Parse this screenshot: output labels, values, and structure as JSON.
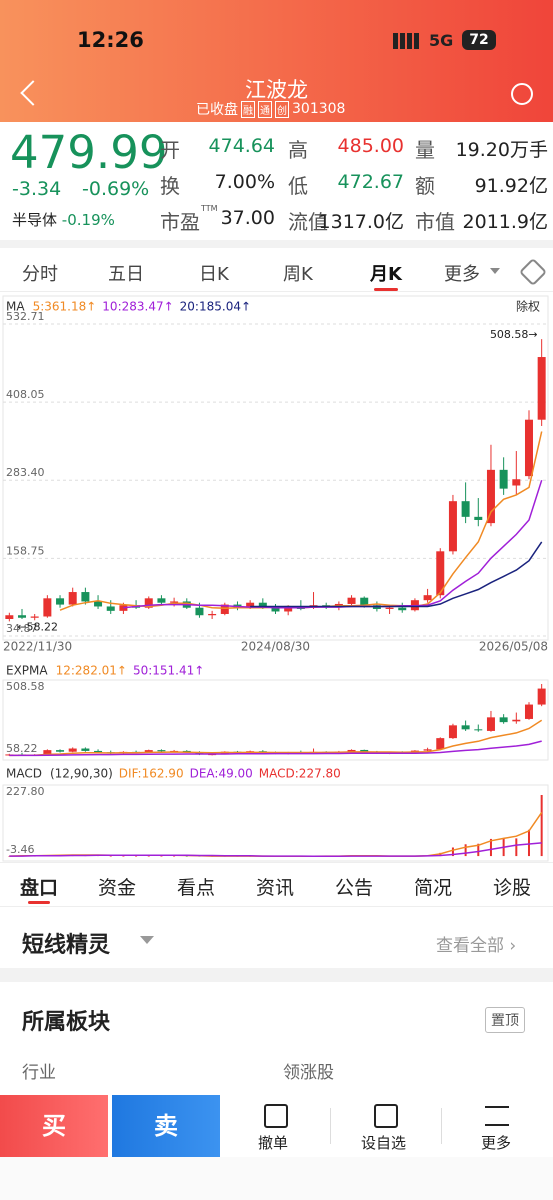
{
  "status_bar": {
    "time": "12:26",
    "network": "5G",
    "battery": "72"
  },
  "header": {
    "title": "江波龙",
    "status": "已收盘",
    "badges": [
      "融",
      "通",
      "创"
    ],
    "code": "301308"
  },
  "quote": {
    "price": "479.99",
    "change": "-3.34",
    "change_pct": "-0.69%",
    "stats": [
      {
        "label": "开",
        "value": "474.64"
      },
      {
        "label": "高",
        "value": "485.00"
      },
      {
        "label": "量",
        "value": "19.20万手"
      },
      {
        "label": "换",
        "value": "7.00%"
      },
      {
        "label": "低",
        "value": "472.67"
      },
      {
        "label": "额",
        "value": "91.92亿"
      },
      {
        "label": "市盈",
        "sup": "TTM",
        "value": "37.00"
      },
      {
        "label": "流值",
        "value": "1317.0亿"
      },
      {
        "label": "市值",
        "value": "2011.9亿"
      }
    ],
    "sector": "半导体",
    "sector_change": "-0.19%"
  },
  "period_tabs": [
    "分时",
    "五日",
    "日K",
    "周K",
    "月K",
    "更多"
  ],
  "chart_data": [
    {
      "type": "candlestick",
      "indicator": "MA",
      "adjust": "除权",
      "max_label": "508.58→",
      "min_label": "←58.22",
      "up_color": "#e8312f",
      "down_color": "#17925b",
      "ylim": [
        34.87,
        532.71
      ],
      "yticks": [
        532.71,
        408.05,
        {
          "value": 283.4,
          "label": "283.40"
        },
        158.75,
        34.87
      ],
      "grid": true,
      "categories": [
        "2022/11/30",
        null,
        null,
        null,
        null,
        null,
        null,
        null,
        null,
        null,
        null,
        null,
        null,
        null,
        null,
        null,
        null,
        null,
        null,
        null,
        null,
        "2024/08/30",
        null,
        null,
        null,
        null,
        null,
        null,
        null,
        null,
        null,
        null,
        null,
        null,
        null,
        null,
        null,
        null,
        null,
        null,
        null,
        null,
        "2026/05/08"
      ],
      "candles": [
        [
          62,
          72,
          58.22,
          68
        ],
        [
          68,
          78,
          62,
          64
        ],
        [
          64,
          70,
          60,
          66
        ],
        [
          66,
          100,
          64,
          95
        ],
        [
          95,
          100,
          80,
          85
        ],
        [
          85,
          112,
          82,
          105
        ],
        [
          105,
          112,
          85,
          90
        ],
        [
          90,
          100,
          78,
          82
        ],
        [
          82,
          92,
          70,
          75
        ],
        [
          75,
          88,
          70,
          84
        ],
        [
          84,
          92,
          78,
          80
        ],
        [
          80,
          98,
          78,
          95
        ],
        [
          95,
          100,
          85,
          88
        ],
        [
          88,
          96,
          82,
          90
        ],
        [
          90,
          95,
          78,
          80
        ],
        [
          80,
          88,
          64,
          68
        ],
        [
          68,
          75,
          62,
          70
        ],
        [
          70,
          88,
          68,
          85
        ],
        [
          85,
          90,
          76,
          80
        ],
        [
          80,
          92,
          78,
          88
        ],
        [
          88,
          95,
          78,
          82
        ],
        [
          82,
          86,
          70,
          74
        ],
        [
          74,
          84,
          68,
          80
        ],
        [
          80,
          92,
          76,
          78
        ],
        [
          80,
          105,
          78,
          84
        ],
        [
          84,
          88,
          78,
          82
        ],
        [
          82,
          90,
          76,
          86
        ],
        [
          86,
          100,
          84,
          96
        ],
        [
          96,
          98,
          80,
          84
        ],
        [
          84,
          90,
          74,
          78
        ],
        [
          78,
          85,
          70,
          80
        ],
        [
          80,
          88,
          72,
          76
        ],
        [
          76,
          95,
          74,
          92
        ],
        [
          92,
          110,
          88,
          100
        ],
        [
          100,
          175,
          95,
          170
        ],
        [
          170,
          260,
          165,
          250
        ],
        [
          250,
          280,
          215,
          225
        ],
        [
          225,
          255,
          210,
          220
        ],
        [
          215,
          340,
          210,
          300
        ],
        [
          300,
          320,
          260,
          270
        ],
        [
          275,
          330,
          260,
          285
        ],
        [
          290,
          395,
          285,
          380
        ],
        [
          380,
          508.58,
          370,
          479.99
        ]
      ],
      "series": [
        {
          "name": "5:361.18↑",
          "color": "#f08a24",
          "values": [
            null,
            null,
            null,
            null,
            76,
            84,
            88,
            91,
            87,
            85,
            83,
            82,
            84,
            87,
            87,
            84,
            80,
            79,
            80,
            80,
            80,
            81,
            82,
            80,
            81,
            82,
            83,
            83,
            84,
            86,
            84,
            83,
            82,
            86,
            104,
            134,
            160,
            185,
            233,
            253,
            260,
            272,
            361.18
          ]
        },
        {
          "name": "10:283.47↑",
          "color": "#a020d8",
          "values": [
            null,
            null,
            null,
            null,
            null,
            null,
            null,
            null,
            null,
            80,
            82,
            84,
            85,
            85,
            85,
            84,
            84,
            83,
            82,
            81,
            81,
            80,
            80,
            80,
            81,
            81,
            81,
            82,
            82,
            82,
            82,
            83,
            83,
            84,
            91,
            108,
            122,
            135,
            159,
            178,
            197,
            220,
            283.47
          ]
        },
        {
          "name": "20:185.04↑",
          "color": "#1a237e",
          "values": [
            null,
            null,
            null,
            null,
            null,
            null,
            null,
            null,
            null,
            null,
            null,
            null,
            null,
            null,
            null,
            null,
            null,
            null,
            null,
            82,
            82,
            82,
            82,
            82,
            82,
            82,
            82,
            82,
            82,
            82,
            82,
            82,
            82,
            82,
            86,
            95,
            102,
            109,
            120,
            130,
            140,
            155,
            185.04
          ]
        }
      ]
    },
    {
      "type": "line",
      "indicator": "EXPMA",
      "ylim": [
        58.22,
        508.58
      ],
      "yticks": [
        508.58,
        58.22
      ],
      "series": [
        {
          "name": "12:282.01↑",
          "color": "#f08a24",
          "values": [
            62,
            63,
            63,
            68,
            71,
            76,
            78,
            78,
            77,
            78,
            78,
            81,
            82,
            83,
            82,
            80,
            79,
            80,
            80,
            81,
            81,
            80,
            80,
            80,
            80,
            81,
            82,
            84,
            84,
            83,
            83,
            82,
            83,
            85,
            98,
            121,
            137,
            150,
            173,
            188,
            203,
            230,
            282.01
          ]
        },
        {
          "name": "50:151.41↑",
          "color": "#a020d8",
          "values": [
            62,
            62,
            62,
            63,
            64,
            65,
            66,
            67,
            67,
            68,
            68,
            69,
            70,
            70,
            71,
            71,
            71,
            71,
            72,
            72,
            72,
            73,
            73,
            73,
            73,
            74,
            74,
            75,
            75,
            75,
            75,
            75,
            76,
            77,
            80,
            87,
            93,
            98,
            107,
            114,
            121,
            131,
            151.41
          ]
        }
      ]
    },
    {
      "type": "bar",
      "indicator": "MACD",
      "params": "(12,90,30)",
      "name": "MACD:227.80",
      "ylim": [
        -3.46,
        227.8
      ],
      "yticks": [
        {
          "value": 227.8,
          "label": "227.80"
        },
        -3.46
      ],
      "values": [
        0,
        2,
        0,
        2,
        4,
        4,
        4,
        2,
        0,
        0,
        0,
        0,
        0,
        0,
        -2,
        -2,
        -2,
        -2,
        -2,
        -2,
        0,
        -2,
        -2,
        -2,
        0,
        2,
        2,
        2,
        2,
        2,
        0,
        0,
        0,
        1,
        12,
        32,
        44,
        46,
        64,
        66,
        66,
        98,
        227.8
      ],
      "series": [
        {
          "name": "DIF:162.90",
          "color": "#f08a24",
          "values": [
            0,
            1,
            1,
            2,
            3,
            4,
            4,
            4,
            3,
            3,
            3,
            3,
            3,
            3,
            2,
            1,
            0,
            0,
            0,
            0,
            0,
            -1,
            -1,
            -1,
            -1,
            0,
            0,
            1,
            1,
            1,
            0,
            0,
            0,
            1,
            8,
            22,
            33,
            40,
            57,
            66,
            74,
            94,
            162.9
          ]
        },
        {
          "name": "DEA:49.00",
          "color": "#a020d8",
          "values": [
            0,
            0,
            1,
            1,
            1,
            2,
            2,
            3,
            3,
            3,
            3,
            3,
            3,
            3,
            3,
            2,
            2,
            1,
            1,
            1,
            0,
            0,
            0,
            0,
            -1,
            -1,
            -1,
            0,
            0,
            0,
            0,
            0,
            0,
            0.5,
            2,
            6,
            11,
            17,
            25,
            33,
            41,
            45,
            49
          ]
        }
      ]
    }
  ],
  "detail_tabs": [
    "盘口",
    "资金",
    "看点",
    "资讯",
    "公告",
    "简况",
    "诊股"
  ],
  "short_line": {
    "title": "短线精灵",
    "link": "查看全部"
  },
  "sector_block": {
    "title": "所属板块",
    "pin": "置顶",
    "col1": "行业",
    "col2": "领涨股"
  },
  "bottom_bar": {
    "buy": "买",
    "sell": "卖",
    "cancel": "撤单",
    "watch": "设自选",
    "more": "更多"
  }
}
